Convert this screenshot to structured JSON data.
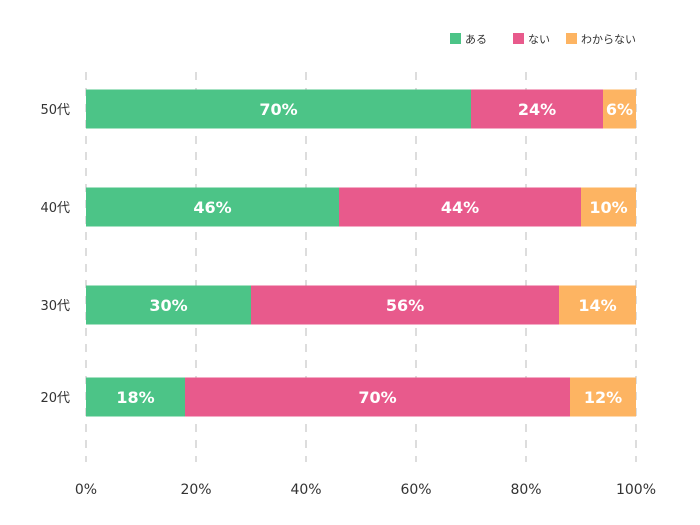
{
  "chart_data": {
    "type": "bar",
    "orientation": "horizontal",
    "stacked": true,
    "categories": [
      "50代",
      "40代",
      "30代",
      "20代"
    ],
    "series": [
      {
        "name": "ある",
        "color": "#4cc487",
        "values": [
          70,
          46,
          30,
          18
        ]
      },
      {
        "name": "ない",
        "color": "#e85a8c",
        "values": [
          24,
          44,
          56,
          70
        ]
      },
      {
        "name": "わからない",
        "color": "#fdb462",
        "values": [
          6,
          10,
          14,
          12
        ]
      }
    ],
    "value_labels": [
      [
        "70%",
        "24%",
        "6%"
      ],
      [
        "46%",
        "44%",
        "10%"
      ],
      [
        "30%",
        "56%",
        "14%"
      ],
      [
        "18%",
        "70%",
        "12%"
      ]
    ],
    "x_ticks": [
      "0%",
      "20%",
      "40%",
      "60%",
      "80%",
      "100%"
    ],
    "xlim": [
      0,
      100
    ],
    "grid": "vertical dashed",
    "legend_position": "top-right",
    "title": "",
    "xlabel": "",
    "ylabel": ""
  }
}
